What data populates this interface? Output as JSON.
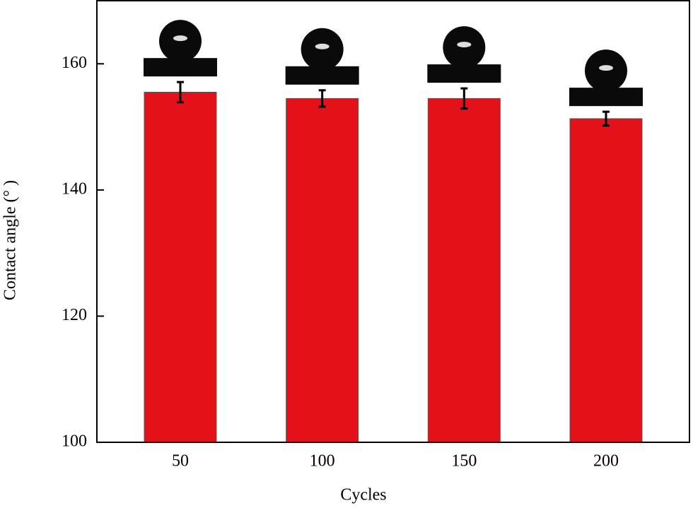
{
  "chart_data": {
    "type": "bar",
    "x_label": "Cycles",
    "y_label": "Contact angle (° )",
    "categories": [
      "50",
      "100",
      "150",
      "200"
    ],
    "values": [
      155.5,
      154.5,
      154.5,
      151.3
    ],
    "errors": [
      1.6,
      1.3,
      1.6,
      1.1
    ],
    "color": "#e3121a",
    "ylim": [
      100,
      170
    ],
    "yticks": [
      100,
      120,
      140,
      160
    ]
  }
}
